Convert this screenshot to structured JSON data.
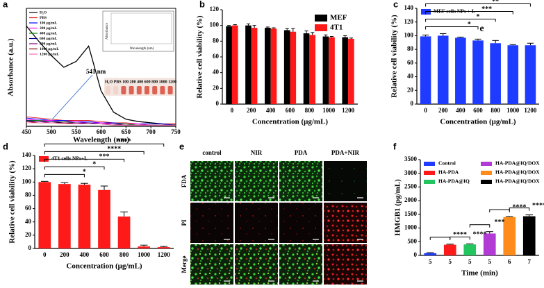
{
  "chart_data": [
    {
      "panel": "a",
      "type": "line",
      "x_label": "Wavelength (nm)",
      "y_label": "Absorbance (a.u.)",
      "x": [
        450,
        475,
        500,
        525,
        550,
        575,
        600,
        625,
        650,
        675,
        700,
        725,
        750
      ],
      "xlim": [
        450,
        750
      ],
      "xticks": [
        450,
        500,
        550,
        600,
        650,
        700,
        750
      ],
      "ylim": [
        0,
        1
      ],
      "series": [
        {
          "name": "H₂O",
          "color": "#000000",
          "values": [
            0.85,
            0.72,
            0.6,
            0.5,
            0.55,
            0.68,
            0.3,
            0.12,
            0.06,
            0.04,
            0.03,
            0.02,
            0.02
          ]
        },
        {
          "name": "PBS",
          "color": "#e41a1c",
          "values": [
            0.08,
            0.07,
            0.06,
            0.05,
            0.05,
            0.05,
            0.04,
            0.03,
            0.03,
            0.02,
            0.02,
            0.02,
            0.02
          ]
        },
        {
          "name": "100 μg/mL",
          "color": "#0000ff",
          "values": [
            0.07,
            0.06,
            0.05,
            0.05,
            0.04,
            0.04,
            0.03,
            0.03,
            0.02,
            0.02,
            0.02,
            0.02,
            0.01
          ]
        },
        {
          "name": "200 μg/mL",
          "color": "#ff00ff",
          "values": [
            0.06,
            0.05,
            0.05,
            0.04,
            0.04,
            0.03,
            0.03,
            0.02,
            0.02,
            0.02,
            0.01,
            0.01,
            0.01
          ]
        },
        {
          "name": "400 μg/mL",
          "color": "#008000",
          "values": [
            0.05,
            0.05,
            0.04,
            0.04,
            0.03,
            0.03,
            0.02,
            0.02,
            0.02,
            0.01,
            0.01,
            0.01,
            0.01
          ]
        },
        {
          "name": "600 μg/mL",
          "color": "#000080",
          "values": [
            0.05,
            0.04,
            0.04,
            0.03,
            0.03,
            0.03,
            0.02,
            0.02,
            0.01,
            0.01,
            0.01,
            0.01,
            0.01
          ]
        },
        {
          "name": "800 μg/mL",
          "color": "#800080",
          "values": [
            0.04,
            0.04,
            0.03,
            0.03,
            0.03,
            0.02,
            0.02,
            0.02,
            0.01,
            0.01,
            0.01,
            0.01,
            0.01
          ]
        },
        {
          "name": "1000 μg/mL",
          "color": "#800000",
          "values": [
            0.04,
            0.03,
            0.03,
            0.03,
            0.02,
            0.02,
            0.02,
            0.01,
            0.01,
            0.01,
            0.01,
            0.01,
            0.01
          ]
        },
        {
          "name": "1200 μg/mL",
          "color": "#ff69b4",
          "values": [
            0.03,
            0.03,
            0.03,
            0.02,
            0.02,
            0.02,
            0.02,
            0.01,
            0.01,
            0.01,
            0.01,
            0.01,
            0.01
          ]
        }
      ],
      "annotation": "541 nm",
      "vial_labels": "H₂O PBS 100 200 400 600 800 1000 1200",
      "inset": {
        "x_label": "Wavelength (nm)",
        "y_label": "Absorbance"
      }
    },
    {
      "panel": "b",
      "type": "bar",
      "x_label": "Concentration (μg/mL)",
      "y_label": "Relative cell viability (%)",
      "categories": [
        "0",
        "200",
        "400",
        "600",
        "800",
        "1000",
        "1200"
      ],
      "ylim": [
        0,
        120
      ],
      "yticks": [
        0,
        20,
        40,
        60,
        80,
        100,
        120
      ],
      "legend": "upper right",
      "series": [
        {
          "name": "MEF",
          "color": "#000000",
          "values": [
            99,
            100,
            97,
            94,
            90,
            86,
            85
          ],
          "errors": [
            1,
            2,
            1,
            2,
            3,
            2,
            2
          ]
        },
        {
          "name": "4T1",
          "color": "#ff1a1a",
          "values": [
            100,
            97,
            96,
            92,
            88,
            85,
            83
          ],
          "errors": [
            1,
            3,
            1,
            4,
            3,
            1,
            1
          ]
        }
      ]
    },
    {
      "panel": "c",
      "type": "bar",
      "x_label": "Concentration (μg/mL)",
      "y_label": "Relative cell viability (%)",
      "categories": [
        "0",
        "200",
        "400",
        "600",
        "800",
        "1000",
        "1200"
      ],
      "ylim": [
        0,
        140
      ],
      "yticks": [
        0,
        20,
        40,
        60,
        80,
        100,
        120,
        140
      ],
      "legend": "upper left",
      "series": [
        {
          "name": "MEF cells NPs + L",
          "color": "#1f3bff",
          "values": [
            99,
            100,
            97,
            93,
            89,
            86,
            86
          ],
          "errors": [
            2,
            3,
            1,
            2,
            4,
            1,
            3
          ]
        }
      ],
      "brackets": [
        {
          "from": 0,
          "to": 3,
          "label": "*"
        },
        {
          "from": 0,
          "to": 4,
          "label": "*"
        },
        {
          "from": 0,
          "to": 5,
          "label": "***"
        },
        {
          "from": 0,
          "to": 6,
          "label": "**"
        }
      ],
      "annotation": "e"
    },
    {
      "panel": "d",
      "type": "bar",
      "x_label": "Concentration (μg/mL)",
      "y_label": "Relative cell viability (%)",
      "categories": [
        "0",
        "200",
        "400",
        "600",
        "800",
        "1000",
        "1200"
      ],
      "ylim": [
        0,
        140
      ],
      "yticks": [
        0,
        20,
        40,
        60,
        80,
        100,
        120,
        140
      ],
      "legend": "upper left",
      "series": [
        {
          "name": "4T1 cells NPs+L",
          "color": "#ff1a1a",
          "values": [
            100,
            97,
            96,
            88,
            48,
            3,
            2
          ],
          "errors": [
            1,
            2,
            2,
            6,
            7,
            2,
            1
          ]
        }
      ],
      "brackets": [
        {
          "from": 0,
          "to": 2,
          "label": "*"
        },
        {
          "from": 0,
          "to": 3,
          "label": "*"
        },
        {
          "from": 0,
          "to": 4,
          "label": "***"
        },
        {
          "from": 0,
          "to": 5,
          "label": "****"
        },
        {
          "from": 0,
          "to": 6,
          "label": "****"
        }
      ]
    },
    {
      "panel": "f",
      "type": "bar",
      "x_label": "Time (min)",
      "y_label": "HMGB1 (pg/mL)",
      "categories": [
        "5",
        "5",
        "5",
        "5",
        "6",
        "7"
      ],
      "ylim": [
        0,
        3500
      ],
      "yticks": [
        0,
        500,
        1000,
        1500,
        2000,
        2500,
        3000,
        3500
      ],
      "values": [
        80,
        390,
        400,
        800,
        1400,
        1430
      ],
      "errors": [
        20,
        20,
        20,
        70,
        20,
        50
      ],
      "colors": [
        "#1f3bff",
        "#ff1a1a",
        "#22c55e",
        "#b23bd6",
        "#ff8c1a",
        "#000000"
      ],
      "legend": [
        "Control",
        "HA-PDA",
        "HA-PDA@IQ",
        "HA-PDA@IQ/DOX",
        "HA-PDA@IQ/DOX",
        "HA-PDA@IQ/DOX"
      ],
      "brackets": [
        {
          "from": 0,
          "to": 1,
          "label": "****"
        },
        {
          "from": 1,
          "to": 2,
          "label": "****"
        },
        {
          "from": 2,
          "to": 3,
          "label": "***"
        },
        {
          "from": 3,
          "to": 4,
          "label": "****"
        },
        {
          "from": 4,
          "to": 5,
          "label": "****"
        }
      ]
    }
  ],
  "image_panel": {
    "panel": "e",
    "columns": [
      "control",
      "NIR",
      "PDA",
      "PDA+NIR"
    ],
    "rows": [
      "FDA",
      "PI",
      "Merge"
    ]
  }
}
